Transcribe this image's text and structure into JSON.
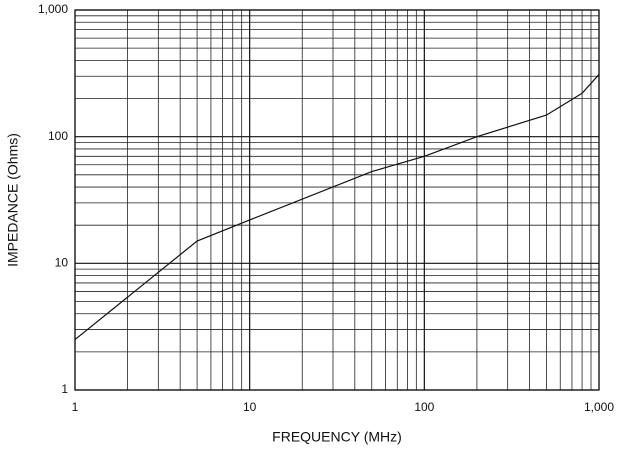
{
  "chart_data": {
    "type": "line",
    "x_label": "FREQUENCY (MHz)",
    "y_label": "IMPEDANCE (Ohms)",
    "x": [
      1,
      5,
      10,
      50,
      100,
      200,
      500,
      800,
      1000
    ],
    "series": [
      {
        "name": "Impedance",
        "color": "#111111",
        "values": [
          2.5,
          15,
          22,
          53,
          70,
          100,
          148,
          220,
          310
        ]
      }
    ],
    "xlim": [
      1,
      1000
    ],
    "ylim": [
      1,
      1000
    ],
    "xticks": [
      1,
      10,
      100,
      {
        "value": 1000,
        "label": "1,000"
      }
    ],
    "yticks": [
      1,
      10,
      100,
      {
        "value": 1000,
        "label": "1,000"
      }
    ],
    "xscale": "log",
    "yscale": "log",
    "grid": true
  }
}
